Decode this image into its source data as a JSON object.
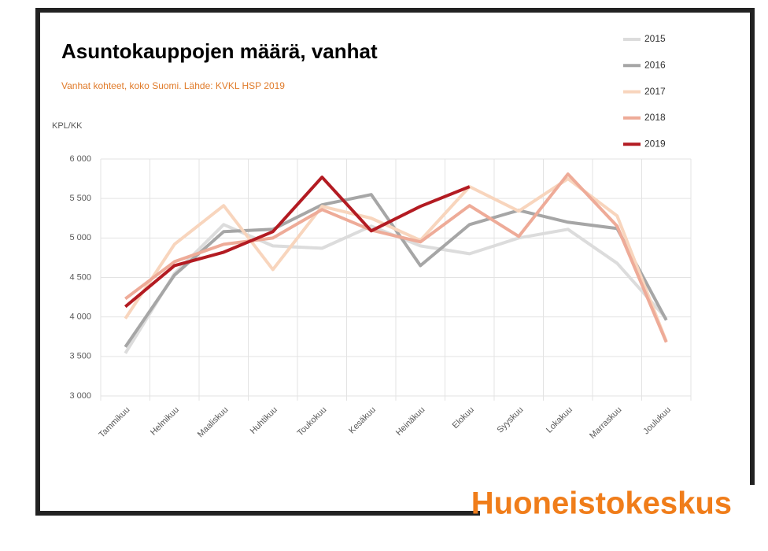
{
  "chart_data": {
    "type": "line",
    "title": "Asuntokauppojen määrä, vanhat",
    "subtitle": "Vanhat kohteet, koko Suomi. Lähde: KVKL HSP 2019",
    "y_label": "KPL/KK",
    "brand": "Huoneistokeskus",
    "categories": [
      "Tammikuu",
      "Helmikuu",
      "Maaliskuu",
      "Huhtikuu",
      "Toukokuu",
      "Kesäkuu",
      "Heinäkuu",
      "Elokuu",
      "Syyskuu",
      "Lokakuu",
      "Marraskuu",
      "Joulukuu"
    ],
    "series": [
      {
        "name": "2015",
        "color": "#dcdcdc",
        "values": [
          3540,
          4550,
          5170,
          4900,
          4870,
          5150,
          4900,
          4800,
          5000,
          5110,
          4680,
          3980
        ]
      },
      {
        "name": "2016",
        "color": "#a6a6a6",
        "values": [
          3620,
          4530,
          5080,
          5110,
          5420,
          5550,
          4650,
          5170,
          5350,
          5200,
          5120,
          3960
        ]
      },
      {
        "name": "2017",
        "color": "#f8d5bd",
        "values": [
          3980,
          4920,
          5410,
          4600,
          5400,
          5250,
          4970,
          5650,
          5340,
          5750,
          5280,
          3690
        ]
      },
      {
        "name": "2018",
        "color": "#eeab98",
        "values": [
          4230,
          4700,
          4920,
          5000,
          5360,
          5100,
          4950,
          5410,
          5020,
          5810,
          5150,
          3680
        ]
      },
      {
        "name": "2019",
        "color": "#b31b22",
        "values": [
          4130,
          4650,
          4820,
          5080,
          5770,
          5090,
          5400,
          5650,
          null,
          null,
          null,
          null
        ]
      }
    ],
    "ylim": [
      3000,
      6000
    ],
    "yticks": [
      {
        "value": 3000,
        "label": "3 000"
      },
      {
        "value": 3500,
        "label": "3 500"
      },
      {
        "value": 4000,
        "label": "4 000"
      },
      {
        "value": 4500,
        "label": "4 500"
      },
      {
        "value": 5000,
        "label": "5 000"
      },
      {
        "value": 5500,
        "label": "5 500"
      },
      {
        "value": 6000,
        "label": "6 000"
      }
    ],
    "grid": true
  }
}
